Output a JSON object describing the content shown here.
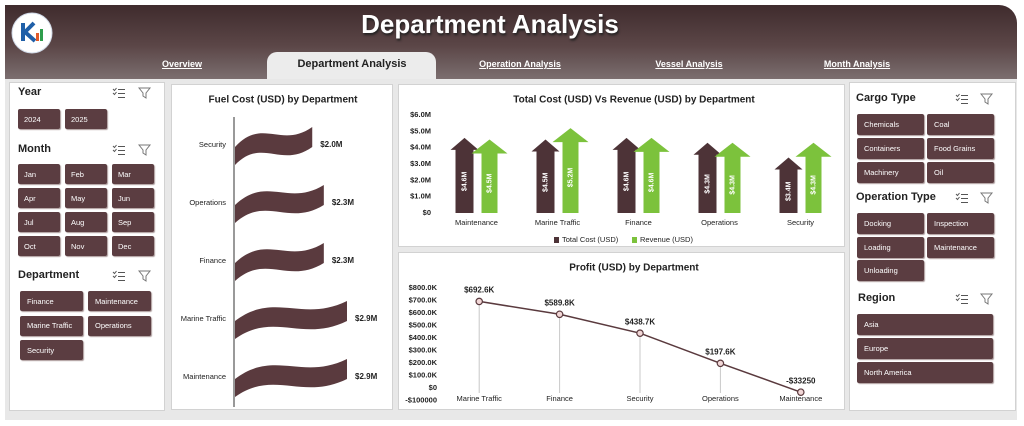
{
  "header": {
    "title": "Department Analysis"
  },
  "tabs": [
    "Overview",
    "Department Analysis",
    "Operation Analysis",
    "Vessel Analysis",
    "Month Analysis"
  ],
  "active_tab": 1,
  "slicers": [
    {
      "title": "Year",
      "items": [
        "2024",
        "2025"
      ]
    },
    {
      "title": "Month",
      "items": [
        "Jan",
        "Feb",
        "Mar",
        "Apr",
        "May",
        "Jun",
        "Jul",
        "Aug",
        "Sep",
        "Oct",
        "Nov",
        "Dec"
      ]
    },
    {
      "title": "Department",
      "items": [
        "Finance",
        "Maintenance",
        "Marine Traffic",
        "Operations",
        "Security"
      ]
    },
    {
      "title": "Cargo Type",
      "items": [
        "Chemicals",
        "Coal",
        "Containers",
        "Food Grains",
        "Machinery",
        "Oil"
      ]
    },
    {
      "title": "Operation Type",
      "items": [
        "Docking",
        "Inspection",
        "Loading",
        "Maintenance",
        "Unloading"
      ]
    },
    {
      "title": "Region",
      "items": [
        "Asia",
        "Europe",
        "North America"
      ]
    }
  ],
  "chart_data": [
    {
      "type": "bar",
      "orientation": "horizontal",
      "title": "Fuel Cost (USD) by Department",
      "categories": [
        "Security",
        "Operations",
        "Finance",
        "Marine Traffic",
        "Maintenance"
      ],
      "values": [
        2000000,
        2300000,
        2300000,
        2900000,
        2900000
      ],
      "value_labels": [
        "$2.0M",
        "$2.3M",
        "$2.3M",
        "$2.9M",
        "$2.9M"
      ],
      "color": "#5a3a3e"
    },
    {
      "type": "bar",
      "orientation": "vertical",
      "title": "Total Cost (USD) Vs Revenue (USD) by Department",
      "categories": [
        "Maintenance",
        "Marine Traffic",
        "Finance",
        "Operations",
        "Security"
      ],
      "series": [
        {
          "name": "Total Cost (USD)",
          "color": "#4d3337",
          "values": [
            4600000,
            4500000,
            4600000,
            4300000,
            3400000
          ],
          "value_labels": [
            "$4.6M",
            "$4.5M",
            "$4.6M",
            "$4.3M",
            "$3.4M"
          ]
        },
        {
          "name": "Revenue (USD)",
          "color": "#7cc23c",
          "values": [
            4500000,
            5200000,
            4600000,
            4300000,
            4300000
          ],
          "value_labels": [
            "$4.5M",
            "$5.2M",
            "$4.6M",
            "$4.3M",
            "$4.3M"
          ]
        }
      ],
      "ylim": [
        0,
        6000000
      ],
      "yticks": [
        {
          "value": 0,
          "label": "$0"
        },
        {
          "value": 1000000,
          "label": "$1.0M"
        },
        {
          "value": 2000000,
          "label": "$2.0M"
        },
        {
          "value": 3000000,
          "label": "$3.0M"
        },
        {
          "value": 4000000,
          "label": "$4.0M"
        },
        {
          "value": 5000000,
          "label": "$5.0M"
        },
        {
          "value": 6000000,
          "label": "$6.0M"
        }
      ],
      "legend": "bottom"
    },
    {
      "type": "line",
      "title": "Profit (USD) by Department",
      "categories": [
        "Marine Traffic",
        "Finance",
        "Security",
        "Operations",
        "Maintenance"
      ],
      "values": [
        692600,
        589800,
        438700,
        197600,
        -33250
      ],
      "value_labels": [
        "$692.6K",
        "$589.8K",
        "$438.7K",
        "$197.6K",
        "-$33250"
      ],
      "color": "#5a3a3e",
      "ylim": [
        -100000,
        800000
      ],
      "yticks": [
        {
          "value": -100000,
          "label": "-$100000"
        },
        {
          "value": 0,
          "label": "$0"
        },
        {
          "value": 100000,
          "label": "$100.0K"
        },
        {
          "value": 200000,
          "label": "$200.0K"
        },
        {
          "value": 300000,
          "label": "$300.0K"
        },
        {
          "value": 400000,
          "label": "$400.0K"
        },
        {
          "value": 500000,
          "label": "$500.0K"
        },
        {
          "value": 600000,
          "label": "$600.0K"
        },
        {
          "value": 700000,
          "label": "$700.0K"
        },
        {
          "value": 800000,
          "label": "$800.0K"
        }
      ]
    }
  ]
}
